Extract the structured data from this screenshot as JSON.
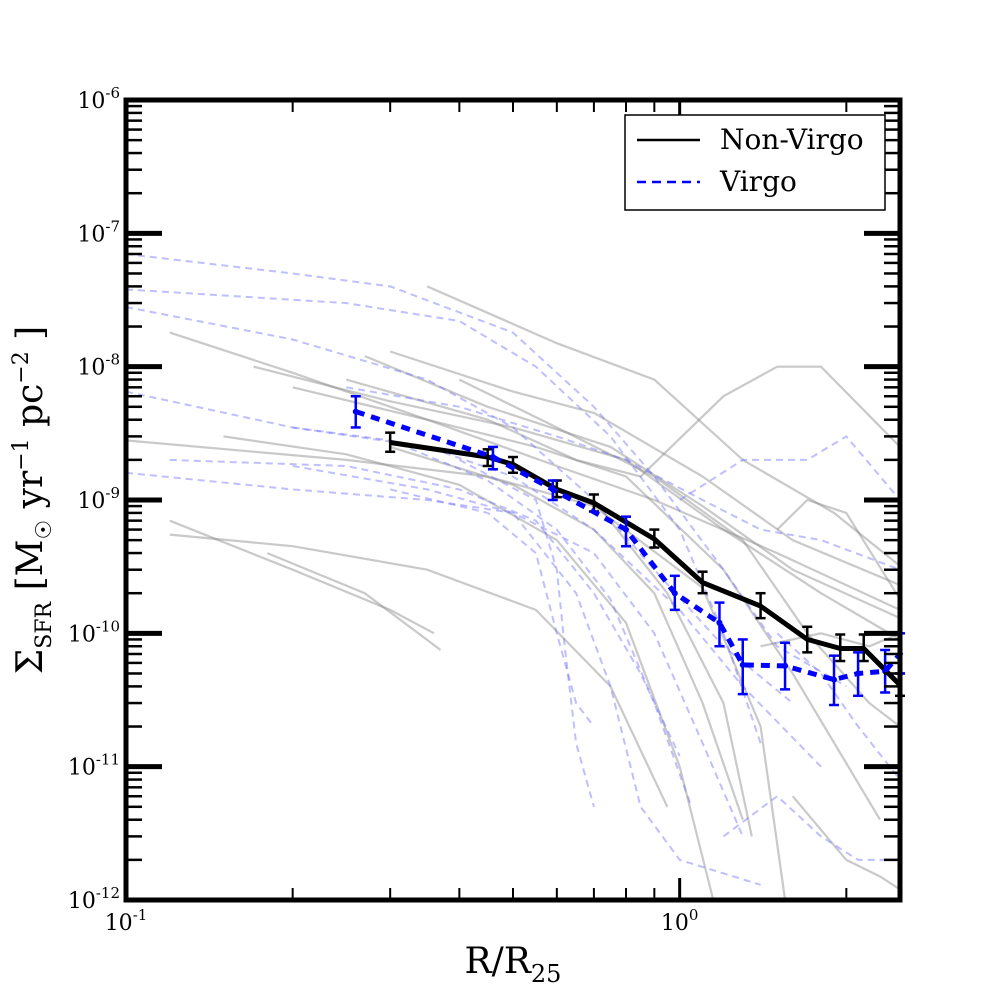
{
  "chart_data": {
    "type": "line",
    "xscale": "log",
    "yscale": "log",
    "xlim": [
      0.1,
      2.5
    ],
    "ylim": [
      1e-12,
      1e-06
    ],
    "grid": false,
    "legend_placement": "top-right",
    "x_tick_labels": [
      {
        "value": 0.1,
        "base": "10",
        "exp": "-1"
      },
      {
        "value": 1,
        "base": "10",
        "exp": "0"
      }
    ],
    "y_tick_labels": [
      {
        "value": 1e-06,
        "base": "10",
        "exp": "-6"
      },
      {
        "value": 1e-07,
        "base": "10",
        "exp": "-7"
      },
      {
        "value": 1e-08,
        "base": "10",
        "exp": "-8"
      },
      {
        "value": 1e-09,
        "base": "10",
        "exp": "-9"
      },
      {
        "value": 1e-10,
        "base": "10",
        "exp": "-10"
      },
      {
        "value": 1e-11,
        "base": "10",
        "exp": "-11"
      },
      {
        "value": 1e-12,
        "base": "10",
        "exp": "-12"
      }
    ],
    "xlabel": {
      "main": "R/R",
      "sub": "25"
    },
    "ylabel": {
      "sigma": "Σ",
      "sigma_sub": "SFR",
      "open": " [M",
      "sun": "☉",
      "yr": " yr",
      "yr_exp": "−1",
      "pc": "  pc",
      "pc_exp": "−2",
      "close": " ]"
    },
    "colors": {
      "non_virgo": "#000000",
      "virgo": "#0000ff",
      "background_gray": "#888888",
      "background_blue": "#7070ff"
    },
    "series": [
      {
        "name": "Non-Virgo",
        "color": "#000000",
        "style": "solid",
        "x": [
          0.3,
          0.45,
          0.5,
          0.6,
          0.7,
          0.9,
          1.1,
          1.4,
          1.7,
          1.95,
          2.15,
          2.5
        ],
        "y": [
          2.7e-09,
          2.1e-09,
          1.85e-09,
          1.2e-09,
          9.5e-10,
          5.1e-10,
          2.4e-10,
          1.6e-10,
          9e-11,
          7.7e-11,
          7.7e-11,
          4.1e-11
        ],
        "err_lo": [
          2.3e-09,
          1.8e-09,
          1.6e-09,
          1.05e-09,
          8.2e-10,
          4.4e-10,
          2e-10,
          1.3e-10,
          7.2e-11,
          6.2e-11,
          6.2e-11,
          3.4e-11
        ],
        "err_hi": [
          3.2e-09,
          2.4e-09,
          2.1e-09,
          1.4e-09,
          1.1e-09,
          6e-10,
          2.9e-10,
          2e-10,
          1.12e-10,
          9.8e-11,
          9.8e-11,
          5e-11
        ]
      },
      {
        "name": "Virgo",
        "color": "#0000ff",
        "style": "dashed",
        "x": [
          0.26,
          0.46,
          0.59,
          0.8,
          0.98,
          1.18,
          1.3,
          1.55,
          1.9,
          2.1,
          2.35,
          2.5
        ],
        "y": [
          4.6e-09,
          2.1e-09,
          1.2e-09,
          6e-10,
          2e-10,
          1.2e-10,
          5.8e-11,
          5.7e-11,
          4.5e-11,
          5e-11,
          5.2e-11,
          7e-11
        ],
        "err_lo": [
          3.5e-09,
          1.7e-09,
          1e-09,
          4.5e-10,
          1.5e-10,
          8e-11,
          3.5e-11,
          3.8e-11,
          2.9e-11,
          3.4e-11,
          3.6e-11,
          5e-11
        ],
        "err_hi": [
          6e-09,
          2.5e-09,
          1.4e-09,
          7.5e-10,
          2.7e-10,
          1.7e-10,
          9e-11,
          8.5e-11,
          6.8e-11,
          7.2e-11,
          7.5e-11,
          1e-10
        ]
      }
    ],
    "background_profiles": {
      "gray": [
        [
          [
            0.12,
            1.8e-08
          ],
          [
            0.2,
            9e-09
          ],
          [
            0.35,
            4e-09
          ],
          [
            0.6,
            1.8e-09
          ],
          [
            0.9,
            1e-09
          ],
          [
            1.5,
            4e-10
          ],
          [
            2.5,
            1.5e-10
          ]
        ],
        [
          [
            0.3,
            1.3e-08
          ],
          [
            0.5,
            6.5e-09
          ],
          [
            0.7,
            4.5e-09
          ],
          [
            1.1,
            1.5e-09
          ],
          [
            1.6,
            5e-10
          ],
          [
            2.5,
            2.3e-10
          ]
        ],
        [
          [
            0.35,
            4e-08
          ],
          [
            0.6,
            1.5e-08
          ],
          [
            0.9,
            8e-09
          ],
          [
            1.3,
            2e-09
          ],
          [
            1.9,
            8e-10
          ],
          [
            2.5,
            3.2e-10
          ]
        ],
        [
          [
            0.27,
            1.2e-08
          ],
          [
            0.45,
            5e-09
          ],
          [
            0.75,
            2.5e-09
          ],
          [
            1.1,
            9e-10
          ],
          [
            1.6,
            3e-10
          ],
          [
            2.5,
            1.3e-10
          ]
        ],
        [
          [
            0.17,
            1e-08
          ],
          [
            0.3,
            5.5e-09
          ],
          [
            0.5,
            3.5e-09
          ],
          [
            0.8,
            2e-09
          ],
          [
            1.2,
            6e-10
          ],
          [
            1.8,
            2e-10
          ],
          [
            2.5,
            9e-11
          ]
        ],
        [
          [
            0.2,
            7e-09
          ],
          [
            0.35,
            4e-09
          ],
          [
            0.55,
            2.5e-09
          ],
          [
            0.8,
            1.5e-09
          ],
          [
            1.2,
            3e-10
          ],
          [
            1.6,
            5e-11
          ],
          [
            2.3,
            4e-12
          ]
        ],
        [
          [
            0.1,
            2.8e-09
          ],
          [
            0.25,
            2e-09
          ],
          [
            0.45,
            1.5e-09
          ],
          [
            0.7,
            9e-10
          ],
          [
            1.1,
            2.2e-10
          ],
          [
            1.4,
            2e-11
          ],
          [
            1.55,
            1e-12
          ]
        ],
        [
          [
            0.15,
            3e-09
          ],
          [
            0.25,
            2.2e-09
          ],
          [
            0.4,
            1.3e-09
          ],
          [
            0.6,
            5e-10
          ],
          [
            0.8,
            1.2e-10
          ],
          [
            1.0,
            1e-11
          ],
          [
            1.15,
            1e-12
          ]
        ],
        [
          [
            0.12,
            5.5e-10
          ],
          [
            0.2,
            4.5e-10
          ],
          [
            0.35,
            3e-10
          ],
          [
            0.55,
            1.5e-10
          ],
          [
            0.75,
            4e-11
          ],
          [
            0.95,
            5e-12
          ]
        ],
        [
          [
            0.12,
            7e-10
          ],
          [
            0.2,
            3e-10
          ],
          [
            0.3,
            1.5e-10
          ],
          [
            0.36,
            1e-10
          ]
        ],
        [
          [
            0.18,
            4e-10
          ],
          [
            0.27,
            2e-10
          ],
          [
            0.37,
            7.5e-11
          ]
        ],
        [
          [
            0.3,
            2.5e-09
          ],
          [
            0.5,
            1.3e-09
          ],
          [
            0.7,
            6e-10
          ],
          [
            0.9,
            2e-10
          ],
          [
            1.1,
            3e-11
          ],
          [
            1.3,
            4e-12
          ]
        ],
        [
          [
            0.4,
            8e-09
          ],
          [
            0.6,
            3.5e-09
          ],
          [
            0.9,
            1.5e-09
          ],
          [
            1.3,
            5e-10
          ],
          [
            1.7,
            1e-10
          ],
          [
            2.2,
            3e-11
          ],
          [
            2.5,
            2e-11
          ]
        ],
        [
          [
            0.25,
            8e-09
          ],
          [
            0.45,
            4e-09
          ],
          [
            0.65,
            2e-09
          ],
          [
            0.85,
            1.5e-09
          ],
          [
            1.2,
            6e-09
          ],
          [
            1.5,
            1e-08
          ],
          [
            1.8,
            1e-08
          ],
          [
            2.5,
            2.5e-09
          ]
        ],
        [
          [
            0.7,
            1e-09
          ],
          [
            0.95,
            2e-10
          ],
          [
            1.2,
            3e-11
          ],
          [
            1.35,
            3e-12
          ]
        ],
        [
          [
            1.5,
            6e-10
          ],
          [
            1.7,
            1e-09
          ],
          [
            2.0,
            8e-10
          ],
          [
            2.5,
            1.8e-10
          ]
        ],
        [
          [
            1.4,
            8e-11
          ],
          [
            1.8,
            1e-10
          ],
          [
            2.2,
            8e-11
          ],
          [
            2.5,
            1e-10
          ]
        ],
        [
          [
            1.6,
            6e-12
          ],
          [
            2.0,
            2e-12
          ],
          [
            2.3,
            1.5e-12
          ],
          [
            2.5,
            1.2e-12
          ]
        ]
      ],
      "blue": [
        [
          [
            0.1,
            7e-08
          ],
          [
            0.2,
            5e-08
          ],
          [
            0.3,
            4e-08
          ],
          [
            0.5,
            1.8e-08
          ],
          [
            0.7,
            5e-09
          ],
          [
            0.9,
            1.5e-09
          ],
          [
            1.2,
            3e-10
          ],
          [
            1.5,
            8e-11
          ],
          [
            2.0,
            4e-11
          ]
        ],
        [
          [
            0.1,
            3.8e-08
          ],
          [
            0.25,
            3e-08
          ],
          [
            0.4,
            2.2e-08
          ],
          [
            0.55,
            1e-08
          ],
          [
            0.75,
            3e-09
          ],
          [
            1.0,
            6e-10
          ],
          [
            1.2,
            1e-10
          ],
          [
            1.4,
            1.5e-11
          ]
        ],
        [
          [
            0.1,
            2.8e-08
          ],
          [
            0.2,
            1.6e-08
          ],
          [
            0.35,
            8e-09
          ],
          [
            0.5,
            3.5e-09
          ],
          [
            0.7,
            1e-09
          ],
          [
            0.9,
            3e-10
          ],
          [
            1.2,
            8e-11
          ],
          [
            1.6,
            3e-11
          ]
        ],
        [
          [
            0.1,
            6.5e-09
          ],
          [
            0.2,
            3.5e-09
          ],
          [
            0.35,
            2.5e-09
          ],
          [
            0.5,
            1.5e-09
          ],
          [
            0.7,
            6e-10
          ],
          [
            1.0,
            1.5e-10
          ],
          [
            1.3,
            4e-11
          ],
          [
            1.8,
            1e-11
          ]
        ],
        [
          [
            0.1,
            1.6e-09
          ],
          [
            0.2,
            1.2e-09
          ],
          [
            0.35,
            1e-09
          ],
          [
            0.5,
            8e-10
          ],
          [
            0.7,
            4e-10
          ],
          [
            0.9,
            1e-10
          ],
          [
            1.1,
            1.5e-11
          ],
          [
            1.3,
            3e-12
          ]
        ],
        [
          [
            0.12,
            2e-09
          ],
          [
            0.25,
            1.8e-09
          ],
          [
            0.4,
            1.2e-09
          ],
          [
            0.55,
            7e-10
          ],
          [
            0.7,
            2e-10
          ],
          [
            0.85,
            5e-11
          ],
          [
            1.0,
            1.2e-11
          ]
        ],
        [
          [
            0.2,
            1.8e-09
          ],
          [
            0.35,
            1.2e-09
          ],
          [
            0.5,
            8e-10
          ],
          [
            0.65,
            2e-10
          ],
          [
            0.75,
            4e-11
          ],
          [
            0.85,
            5e-12
          ],
          [
            1.0,
            2e-12
          ],
          [
            1.4,
            1.3e-12
          ]
        ],
        [
          [
            0.2,
            3.5e-09
          ],
          [
            0.3,
            2.8e-09
          ],
          [
            0.45,
            1.4e-09
          ],
          [
            0.6,
            6e-10
          ],
          [
            0.75,
            1.8e-10
          ],
          [
            0.9,
            3e-11
          ],
          [
            1.05,
            5e-12
          ]
        ],
        [
          [
            0.25,
            7e-09
          ],
          [
            0.4,
            5e-09
          ],
          [
            0.6,
            3e-09
          ],
          [
            0.8,
            2e-09
          ],
          [
            1.1,
            1e-09
          ],
          [
            1.4,
            6e-10
          ],
          [
            1.8,
            5e-10
          ],
          [
            2.5,
            3e-10
          ]
        ],
        [
          [
            0.3,
            1.2e-09
          ],
          [
            0.45,
            8e-10
          ],
          [
            0.55,
            4e-10
          ],
          [
            0.6,
            1e-10
          ],
          [
            0.65,
            3e-11
          ],
          [
            0.7,
            2e-11
          ]
        ],
        [
          [
            0.4,
            2e-09
          ],
          [
            0.55,
            1e-09
          ],
          [
            0.6,
            3e-10
          ],
          [
            0.62,
            8e-11
          ],
          [
            0.65,
            1.5e-11
          ],
          [
            0.7,
            5e-12
          ]
        ],
        [
          [
            1.0,
            1e-09
          ],
          [
            1.3,
            2e-09
          ],
          [
            1.7,
            2e-09
          ],
          [
            2.0,
            3e-09
          ],
          [
            2.5,
            1e-09
          ]
        ],
        [
          [
            1.5,
            1e-10
          ],
          [
            1.8,
            5e-11
          ],
          [
            2.1,
            2e-11
          ],
          [
            2.5,
            8e-12
          ]
        ],
        [
          [
            1.2,
            3e-12
          ],
          [
            1.5,
            6e-12
          ],
          [
            1.8,
            3e-12
          ],
          [
            2.1,
            2e-12
          ],
          [
            2.5,
            2e-12
          ]
        ]
      ]
    },
    "legend": {
      "entries": [
        "Non-Virgo",
        "Virgo"
      ]
    }
  }
}
